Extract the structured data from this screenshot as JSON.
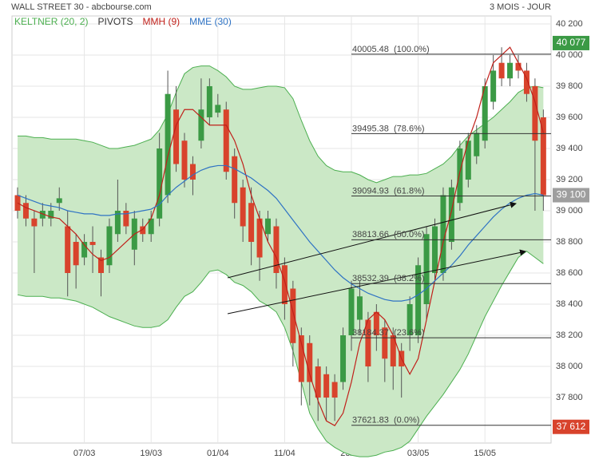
{
  "chart_data": {
    "type": "candlestick",
    "title": "WALL STREET 30 - abcbourse.com",
    "period": "3 MOIS - JOUR",
    "categories": [
      null,
      null,
      null,
      null,
      null,
      null,
      null,
      null,
      "07/03",
      null,
      null,
      null,
      null,
      null,
      null,
      null,
      "19/03",
      null,
      null,
      null,
      null,
      null,
      null,
      null,
      "01/04",
      null,
      null,
      null,
      null,
      null,
      null,
      null,
      "11/04",
      null,
      null,
      null,
      null,
      null,
      null,
      null,
      "23/04",
      null,
      null,
      null,
      null,
      null,
      null,
      null,
      "03/05",
      null,
      null,
      null,
      null,
      null,
      null,
      null,
      "15/05",
      null,
      null,
      null,
      null,
      null,
      null,
      null
    ],
    "candles": {
      "up_color": "#3b9a45",
      "down_color": "#d8432c",
      "open": [
        39100,
        39050,
        38950,
        38950,
        38950,
        39050,
        38900,
        38800,
        38700,
        38800,
        38700,
        38650,
        38850,
        39000,
        38750,
        38900,
        38850,
        38950,
        39100,
        39650,
        39450,
        39300,
        39450,
        39600,
        39630,
        39650,
        39350,
        39150,
        39050,
        38950,
        38850,
        38900,
        38650,
        38500,
        38200,
        38150,
        38000,
        37950,
        37900,
        37900,
        38200,
        38300,
        38300,
        38350,
        38250,
        38200,
        38100,
        38200,
        38200,
        38400,
        38600,
        38600,
        38800,
        39050,
        39200,
        39350,
        39450,
        39700,
        39950,
        39850,
        39950,
        39900,
        39800,
        39600
      ],
      "high": [
        39150,
        39100,
        39000,
        39050,
        39050,
        39150,
        39000,
        38850,
        38850,
        38900,
        38750,
        38950,
        39200,
        39050,
        39000,
        38950,
        39000,
        39500,
        39900,
        39800,
        39500,
        39350,
        39850,
        39850,
        39750,
        39700,
        39400,
        39200,
        39150,
        39000,
        39000,
        38950,
        38700,
        38550,
        38250,
        38200,
        38050,
        38000,
        37950,
        38250,
        38550,
        38550,
        38350,
        38400,
        38300,
        38250,
        38150,
        38450,
        38700,
        38900,
        38950,
        39150,
        39200,
        39450,
        39500,
        39550,
        39850,
        40000,
        40050,
        40000,
        40000,
        39950,
        39850,
        39650
      ],
      "low": [
        38950,
        38900,
        38600,
        38900,
        38900,
        39000,
        38450,
        38500,
        38650,
        38600,
        38450,
        38600,
        38800,
        38850,
        38650,
        38800,
        38800,
        38900,
        39050,
        39250,
        39150,
        39100,
        39400,
        39550,
        39600,
        39200,
        38950,
        38800,
        38650,
        38550,
        38800,
        38500,
        38300,
        38000,
        37750,
        37750,
        37650,
        37650,
        37650,
        37850,
        38100,
        38200,
        37900,
        38100,
        37900,
        37850,
        37800,
        38100,
        38150,
        38300,
        38550,
        38550,
        38750,
        39000,
        39150,
        39300,
        39400,
        39650,
        39800,
        39800,
        39850,
        39700,
        39000,
        39000
      ],
      "close": [
        39000,
        38950,
        38900,
        39000,
        39000,
        39080,
        38600,
        38650,
        38800,
        38780,
        38600,
        38900,
        39000,
        38900,
        38950,
        38850,
        38950,
        39400,
        39750,
        39300,
        39200,
        39200,
        39650,
        39800,
        39680,
        39250,
        39050,
        38900,
        38800,
        38700,
        38950,
        38600,
        38400,
        38150,
        37900,
        37900,
        37800,
        37800,
        37800,
        38200,
        38500,
        38450,
        38000,
        38200,
        38050,
        38000,
        38000,
        38400,
        38650,
        38850,
        38900,
        39100,
        39150,
        39400,
        39450,
        39500,
        39800,
        39900,
        39850,
        39950,
        39900,
        39750,
        39450,
        39100
      ]
    },
    "keltner": {
      "name": "KELTNER (20, 2)",
      "color": "#4caf50",
      "fill": "#cbe8c6",
      "upper": [
        39480,
        39480,
        39470,
        39470,
        39460,
        39460,
        39460,
        39460,
        39450,
        39440,
        39420,
        39400,
        39400,
        39410,
        39420,
        39440,
        39460,
        39520,
        39620,
        39760,
        39880,
        39920,
        39930,
        39930,
        39900,
        39860,
        39800,
        39780,
        39780,
        39790,
        39800,
        39800,
        39790,
        39720,
        39580,
        39450,
        39350,
        39290,
        39260,
        39250,
        39250,
        39230,
        39200,
        39180,
        39200,
        39220,
        39220,
        39230,
        39230,
        39240,
        39270,
        39300,
        39350,
        39420,
        39480,
        39520,
        39560,
        39600,
        39650,
        39700,
        39760,
        39790,
        39800,
        39790
      ],
      "lower": [
        38460,
        38450,
        38450,
        38450,
        38440,
        38440,
        38430,
        38420,
        38400,
        38380,
        38350,
        38320,
        38300,
        38280,
        38260,
        38250,
        38250,
        38260,
        38300,
        38380,
        38450,
        38480,
        38540,
        38610,
        38620,
        38590,
        38540,
        38520,
        38480,
        38420,
        38390,
        38350,
        38250,
        38100,
        37900,
        37700,
        37600,
        37520,
        37480,
        37450,
        37430,
        37420,
        37420,
        37430,
        37450,
        37460,
        37480,
        37520,
        37600,
        37680,
        37750,
        37820,
        37900,
        37980,
        38080,
        38200,
        38320,
        38420,
        38520,
        38610,
        38700,
        38740,
        38700,
        38660
      ]
    },
    "pivots": {
      "name": "PIVOTS",
      "color": "#333333",
      "levels": [
        {
          "value": 40005.48,
          "label": "40005.48  (100.0%)"
        },
        {
          "value": 39495.38,
          "label": "39495.38  (78.6%)"
        },
        {
          "value": 39094.93,
          "label": "39094.93  (61.8%)"
        },
        {
          "value": 38813.66,
          "label": "38813.66  (50.0%)"
        },
        {
          "value": 38532.39,
          "label": "38532.39  (38.2%)"
        },
        {
          "value": 38184.37,
          "label": "38184.37  (23.6%)"
        },
        {
          "value": 37621.83,
          "label": "37621.83  (0.0%)"
        }
      ]
    },
    "series": [
      {
        "name": "MMH (9)",
        "color": "#c0201a",
        "values": [
          39050,
          39020,
          39000,
          38980,
          38960,
          38950,
          38900,
          38850,
          38780,
          38720,
          38680,
          38700,
          38750,
          38800,
          38850,
          38880,
          38950,
          39100,
          39350,
          39550,
          39650,
          39650,
          39600,
          39550,
          39550,
          39550,
          39450,
          39300,
          39100,
          38950,
          38800,
          38700,
          38550,
          38350,
          38150,
          37950,
          37780,
          37650,
          37620,
          37700,
          37900,
          38150,
          38300,
          38350,
          38300,
          38200,
          38050,
          37950,
          38050,
          38300,
          38550,
          38800,
          39000,
          39250,
          39450,
          39600,
          39800,
          39950,
          40000,
          40050,
          39950,
          39850,
          39700,
          39500
        ]
      },
      {
        "name": "MME (30)",
        "color": "#2f73c4",
        "values": [
          39100,
          39080,
          39060,
          39040,
          39030,
          39020,
          39000,
          38990,
          38980,
          38980,
          38970,
          38970,
          38980,
          38980,
          38990,
          39000,
          39010,
          39040,
          39100,
          39150,
          39190,
          39230,
          39260,
          39280,
          39290,
          39290,
          39270,
          39240,
          39210,
          39170,
          39130,
          39080,
          39010,
          38940,
          38870,
          38800,
          38740,
          38680,
          38620,
          38570,
          38530,
          38500,
          38470,
          38450,
          38430,
          38420,
          38420,
          38430,
          38460,
          38500,
          38550,
          38600,
          38650,
          38710,
          38780,
          38840,
          38900,
          38960,
          39010,
          39050,
          39080,
          39100,
          39110,
          39100
        ]
      }
    ],
    "price_tags": [
      {
        "value": 40077,
        "label": "40 077",
        "color": "#3b9a45"
      },
      {
        "value": 39100,
        "label": "39 100",
        "color": "#9e9e9e"
      },
      {
        "value": 37612,
        "label": "37 612",
        "color": "#d8432c"
      }
    ],
    "ylim": [
      37508,
      40251
    ],
    "yticks": [
      {
        "value": 37800,
        "label": "37 800"
      },
      {
        "value": 38000,
        "label": "38 000"
      },
      {
        "value": 38200,
        "label": "38 200"
      },
      {
        "value": 38400,
        "label": "38 400"
      },
      {
        "value": 38600,
        "label": "38 600"
      },
      {
        "value": 38800,
        "label": "38 800"
      },
      {
        "value": 39000,
        "label": "39 000"
      },
      {
        "value": 39200,
        "label": "39 200"
      },
      {
        "value": 39400,
        "label": "39 400"
      },
      {
        "value": 39600,
        "label": "39 600"
      },
      {
        "value": 39800,
        "label": "39 800"
      },
      {
        "value": 40000,
        "label": "40 000"
      },
      {
        "value": 40200,
        "label": "40 200"
      }
    ],
    "grid": true
  }
}
